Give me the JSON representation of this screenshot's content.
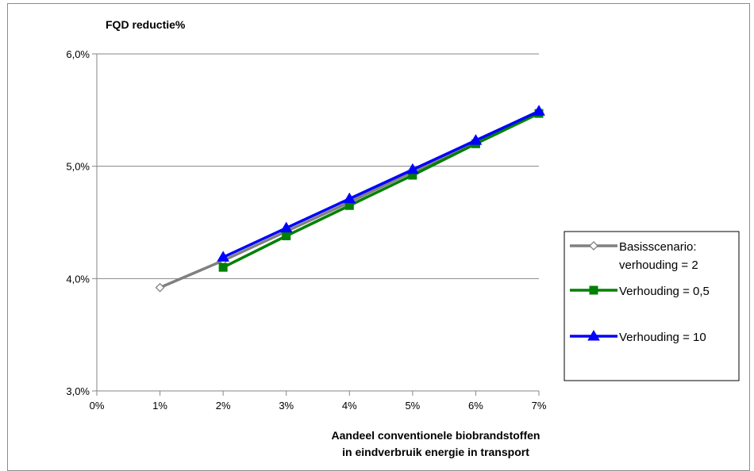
{
  "chart_data": {
    "type": "line",
    "title": "FQD  reductie%",
    "xlabel_lines": [
      "Aandeel conventionele biobrandstoffen",
      "in eindverbruik energie in transport"
    ],
    "ylabel": "",
    "x_ticks": [
      "0%",
      "1%",
      "2%",
      "3%",
      "4%",
      "5%",
      "6%",
      "7%"
    ],
    "y_ticks": [
      "3,0%",
      "4,0%",
      "5,0%",
      "6,0%"
    ],
    "xlim": [
      0,
      7
    ],
    "ylim": [
      3.0,
      6.0
    ],
    "grid": "horizontal",
    "legend_position": "right",
    "series": [
      {
        "name_lines": [
          "Basisscenario:",
          "verhouding = 2"
        ],
        "color": "#808080",
        "marker": "diamond-open",
        "x": [
          1,
          2,
          3,
          4,
          5,
          6,
          7
        ],
        "values": [
          3.92,
          4.16,
          4.42,
          4.68,
          4.95,
          5.21,
          5.48
        ]
      },
      {
        "name_lines": [
          "Verhouding = 0,5"
        ],
        "color": "#008000",
        "marker": "square",
        "x": [
          2,
          3,
          4,
          5,
          6,
          7
        ],
        "values": [
          4.1,
          4.38,
          4.65,
          4.92,
          5.2,
          5.47
        ]
      },
      {
        "name_lines": [
          "Verhouding = 10"
        ],
        "color": "#0000ff",
        "marker": "triangle",
        "x": [
          2,
          3,
          4,
          5,
          6,
          7
        ],
        "values": [
          4.19,
          4.45,
          4.71,
          4.97,
          5.23,
          5.49
        ]
      }
    ]
  }
}
